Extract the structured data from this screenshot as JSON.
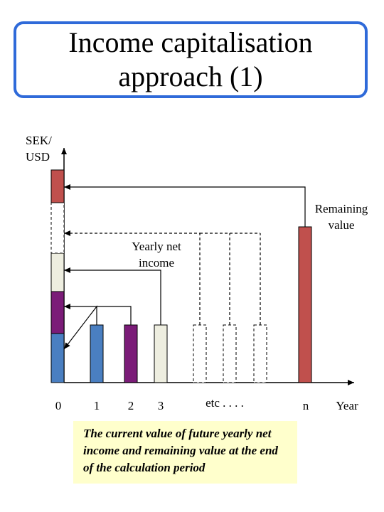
{
  "title": {
    "line1": "Income capitalisation",
    "line2": "approach (1)"
  },
  "colors": {
    "blue": "#4a7fc1",
    "purple": "#7b1c78",
    "cream": "#eeeee0",
    "red": "#c0504d",
    "frame": "#2f6ad9",
    "caption_bg": "#ffffcc"
  },
  "axis": {
    "y_label": "SEK/ USD",
    "x_label": "Year"
  },
  "x_ticks": [
    "0",
    "1",
    "2",
    "3",
    "etc . . . .",
    "n"
  ],
  "labels": {
    "remaining_value": "Remaining value",
    "yearly_net_income": "Yearly net income"
  },
  "caption": "The current value of future yearly net income and remaining value at the end of the calculation period"
}
